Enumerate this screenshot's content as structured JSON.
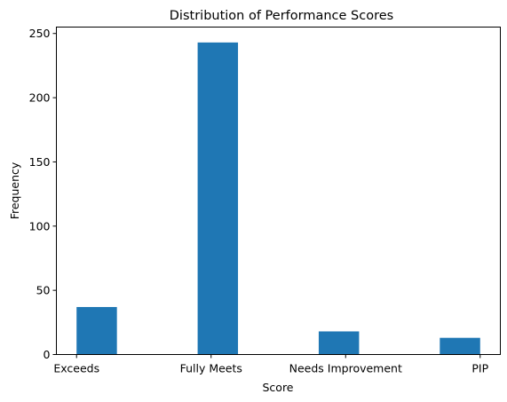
{
  "chart_data": {
    "type": "bar",
    "title": "Distribution of Performance Scores",
    "xlabel": "Score",
    "ylabel": "Frequency",
    "categories": [
      "Exceeds",
      "Fully Meets",
      "Needs Improvement",
      "PIP"
    ],
    "values": [
      37,
      243,
      18,
      13
    ],
    "ylim": [
      0,
      255
    ],
    "yticks": [
      0,
      50,
      100,
      150,
      200,
      250
    ],
    "grid": false,
    "bar_color": "#1f77b4"
  }
}
